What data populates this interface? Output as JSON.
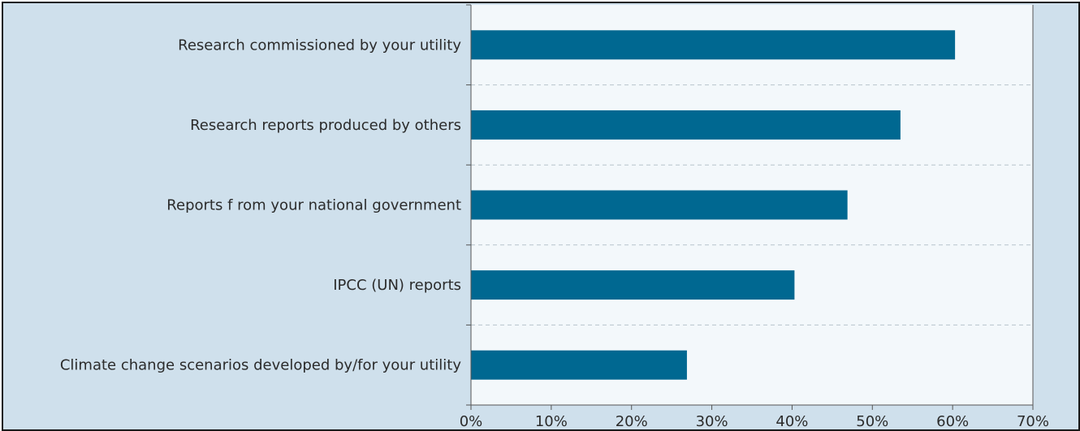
{
  "colors": {
    "background": "#cfe0ec",
    "plot_area": "#f3f8fb",
    "bar": "#006891",
    "grid": "#b8c4cc",
    "axis": "#555555"
  },
  "chart_data": {
    "type": "bar",
    "orientation": "horizontal",
    "title": "",
    "xlabel": "",
    "ylabel": "",
    "categories": [
      "Research commissioned by your utility",
      "Research reports produced by others",
      "Reports f rom your national government",
      "IPCC (UN) reports",
      "Climate change scenarios developed by/for your utility"
    ],
    "values": [
      60.3,
      53.5,
      46.9,
      40.3,
      26.9
    ],
    "xlim": [
      0,
      70
    ],
    "x_ticks": [
      0,
      10,
      20,
      30,
      40,
      50,
      60,
      70
    ],
    "x_tick_labels": [
      "0%",
      "10%",
      "20%",
      "30%",
      "40%",
      "50%",
      "60%",
      "70%"
    ],
    "grid": "dashed horizontal separators between categories",
    "legend": "none"
  }
}
